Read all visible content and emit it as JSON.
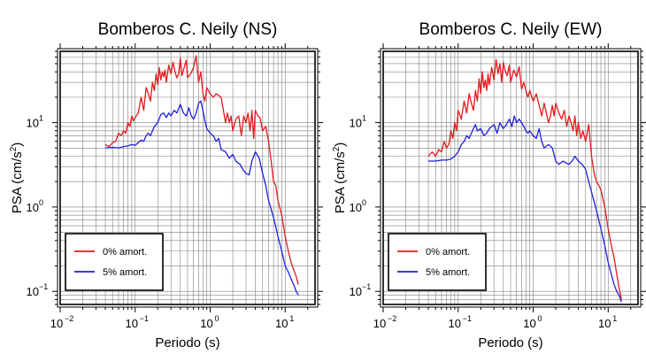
{
  "chart_data": [
    {
      "type": "line",
      "title": "Bomberos C. Neily (NS)",
      "xlabel": "Periodo (s)",
      "ylabel_main": "PSA (cm/s",
      "ylabel_sup": "2",
      "ylabel_close": ")",
      "xscale": "log",
      "yscale": "log",
      "xlim": [
        0.01,
        25
      ],
      "ylim": [
        0.07,
        70
      ],
      "grid": true,
      "legend_position": "bottom-left",
      "xticks": [
        {
          "value": 0.01,
          "base": "10",
          "exp": "−2"
        },
        {
          "value": 0.1,
          "base": "10",
          "exp": "−1"
        },
        {
          "value": 1,
          "base": "10",
          "exp": "0"
        },
        {
          "value": 10,
          "base": "10",
          "exp": "1"
        }
      ],
      "yticks": [
        {
          "value": 0.1,
          "base": "10",
          "exp": "−1"
        },
        {
          "value": 1,
          "base": "10",
          "exp": "0"
        },
        {
          "value": 10,
          "base": "10",
          "exp": "1"
        }
      ],
      "series": [
        {
          "name": "0% amort.",
          "color": "#e41a1c",
          "x": [
            0.04,
            0.045,
            0.05,
            0.055,
            0.06,
            0.065,
            0.07,
            0.075,
            0.08,
            0.085,
            0.09,
            0.095,
            0.1,
            0.11,
            0.12,
            0.13,
            0.14,
            0.15,
            0.16,
            0.17,
            0.18,
            0.19,
            0.2,
            0.21,
            0.22,
            0.23,
            0.24,
            0.25,
            0.26,
            0.28,
            0.3,
            0.32,
            0.34,
            0.36,
            0.38,
            0.4,
            0.42,
            0.45,
            0.48,
            0.5,
            0.55,
            0.6,
            0.65,
            0.7,
            0.75,
            0.8,
            0.85,
            0.9,
            1.0,
            1.1,
            1.2,
            1.3,
            1.4,
            1.5,
            1.6,
            1.7,
            1.8,
            1.9,
            2.0,
            2.2,
            2.4,
            2.6,
            2.8,
            3.0,
            3.2,
            3.4,
            3.6,
            3.8,
            4.0,
            4.3,
            4.6,
            5.0,
            5.5,
            6.0,
            6.5,
            7.0,
            7.5,
            8.0,
            9.0,
            10.0,
            11.0,
            12.0,
            13.0,
            14.0,
            15.0
          ],
          "y": [
            5.5,
            5.2,
            5.8,
            6.0,
            7.5,
            7.0,
            8.0,
            7.5,
            10.0,
            9.0,
            12.0,
            10.5,
            11.5,
            13.0,
            20.0,
            14.0,
            26.0,
            22.0,
            18.0,
            30.0,
            24.0,
            38.0,
            28.0,
            45.0,
            32.0,
            40.0,
            35.0,
            42.0,
            30.0,
            48.0,
            38.0,
            52.0,
            40.0,
            34.0,
            38.0,
            58.0,
            36.0,
            45.0,
            55.0,
            34.0,
            38.0,
            45.0,
            62.0,
            30.0,
            40.0,
            22.0,
            18.0,
            26.0,
            22.0,
            20.0,
            22.0,
            21.0,
            20.0,
            14.0,
            10.0,
            13.0,
            10.0,
            12.0,
            8.0,
            11.0,
            12.0,
            7.0,
            12.0,
            10.0,
            13.0,
            8.0,
            14.0,
            6.5,
            14.0,
            12.0,
            11.5,
            8.0,
            9.0,
            6.0,
            3.5,
            2.0,
            1.8,
            1.2,
            0.8,
            0.45,
            0.3,
            0.22,
            0.18,
            0.15,
            0.12
          ]
        },
        {
          "name": "5% amort.",
          "color": "#1f1fe0",
          "x": [
            0.04,
            0.05,
            0.06,
            0.07,
            0.08,
            0.09,
            0.1,
            0.11,
            0.12,
            0.13,
            0.14,
            0.15,
            0.16,
            0.17,
            0.18,
            0.2,
            0.22,
            0.24,
            0.26,
            0.28,
            0.3,
            0.33,
            0.36,
            0.4,
            0.44,
            0.48,
            0.52,
            0.56,
            0.6,
            0.65,
            0.7,
            0.75,
            0.8,
            0.85,
            0.9,
            1.0,
            1.1,
            1.2,
            1.3,
            1.4,
            1.6,
            1.8,
            2.0,
            2.2,
            2.5,
            2.8,
            3.0,
            3.3,
            3.6,
            4.0,
            4.5,
            5.0,
            5.5,
            6.0,
            7.0,
            8.0,
            9.0,
            10.0,
            11.0,
            12.0,
            13.0,
            14.0,
            15.0
          ],
          "y": [
            5.0,
            5.1,
            5.0,
            5.2,
            5.3,
            5.5,
            5.4,
            5.8,
            6.2,
            6.0,
            7.0,
            7.5,
            7.0,
            8.0,
            9.0,
            10.0,
            12.5,
            13.0,
            11.5,
            13.0,
            12.0,
            14.0,
            13.0,
            16.5,
            13.0,
            12.0,
            15.0,
            12.0,
            11.0,
            13.0,
            17.0,
            18.0,
            14.0,
            10.5,
            8.5,
            7.5,
            7.0,
            6.0,
            6.5,
            4.8,
            4.5,
            3.8,
            4.2,
            3.5,
            3.2,
            2.7,
            2.5,
            2.4,
            3.5,
            4.5,
            3.8,
            2.5,
            1.8,
            1.2,
            0.75,
            0.45,
            0.3,
            0.2,
            0.17,
            0.14,
            0.12,
            0.1,
            0.09
          ]
        }
      ]
    },
    {
      "type": "line",
      "title": "Bomberos C. Neily (EW)",
      "xlabel": "Periodo (s)",
      "ylabel_main": "PSA (cm/s",
      "ylabel_sup": "2",
      "ylabel_close": ")",
      "xscale": "log",
      "yscale": "log",
      "xlim": [
        0.01,
        25
      ],
      "ylim": [
        0.07,
        70
      ],
      "grid": true,
      "legend_position": "bottom-left",
      "xticks": [
        {
          "value": 0.01,
          "base": "10",
          "exp": "−2"
        },
        {
          "value": 0.1,
          "base": "10",
          "exp": "−1"
        },
        {
          "value": 1,
          "base": "10",
          "exp": "0"
        },
        {
          "value": 10,
          "base": "10",
          "exp": "1"
        }
      ],
      "yticks": [
        {
          "value": 0.1,
          "base": "10",
          "exp": "−1"
        },
        {
          "value": 1,
          "base": "10",
          "exp": "0"
        },
        {
          "value": 10,
          "base": "10",
          "exp": "1"
        }
      ],
      "series": [
        {
          "name": "0% amort.",
          "color": "#e41a1c",
          "x": [
            0.04,
            0.045,
            0.05,
            0.055,
            0.06,
            0.065,
            0.07,
            0.075,
            0.08,
            0.085,
            0.09,
            0.095,
            0.1,
            0.11,
            0.12,
            0.13,
            0.14,
            0.15,
            0.16,
            0.17,
            0.18,
            0.19,
            0.2,
            0.21,
            0.22,
            0.23,
            0.24,
            0.25,
            0.26,
            0.28,
            0.3,
            0.32,
            0.34,
            0.36,
            0.38,
            0.4,
            0.42,
            0.45,
            0.48,
            0.5,
            0.55,
            0.6,
            0.65,
            0.7,
            0.75,
            0.8,
            0.85,
            0.9,
            1.0,
            1.1,
            1.2,
            1.3,
            1.4,
            1.5,
            1.6,
            1.7,
            1.8,
            1.9,
            2.0,
            2.2,
            2.4,
            2.6,
            2.8,
            3.0,
            3.2,
            3.4,
            3.6,
            3.8,
            4.0,
            4.3,
            4.6,
            5.0,
            5.5,
            6.0,
            6.5,
            7.0,
            7.5,
            8.0,
            9.0,
            10.0,
            11.0,
            12.0,
            13.0,
            14.0,
            15.0
          ],
          "y": [
            4.0,
            4.5,
            4.0,
            4.8,
            4.5,
            6.0,
            5.0,
            5.5,
            8.0,
            6.5,
            10.0,
            8.0,
            14.0,
            11.0,
            18.0,
            13.0,
            22.0,
            17.0,
            14.0,
            24.0,
            18.0,
            33.0,
            22.0,
            40.0,
            26.0,
            32.0,
            24.0,
            38.0,
            28.0,
            45.0,
            32.0,
            56.0,
            38.0,
            50.0,
            30.0,
            52.0,
            42.0,
            36.0,
            48.0,
            30.0,
            42.0,
            35.0,
            46.0,
            25.0,
            30.0,
            24.0,
            20.0,
            24.0,
            18.0,
            22.0,
            16.0,
            12.0,
            17.0,
            13.0,
            10.0,
            12.0,
            16.0,
            12.0,
            17.0,
            13.0,
            11.0,
            14.0,
            9.0,
            12.0,
            10.0,
            8.0,
            12.0,
            7.0,
            10.0,
            6.5,
            8.0,
            6.0,
            9.5,
            4.0,
            2.5,
            2.0,
            1.8,
            1.6,
            1.0,
            0.55,
            0.35,
            0.25,
            0.16,
            0.11,
            0.08
          ]
        },
        {
          "name": "5% amort.",
          "color": "#1f1fe0",
          "x": [
            0.04,
            0.05,
            0.06,
            0.07,
            0.08,
            0.09,
            0.1,
            0.11,
            0.12,
            0.13,
            0.14,
            0.15,
            0.16,
            0.17,
            0.18,
            0.2,
            0.22,
            0.24,
            0.26,
            0.28,
            0.3,
            0.33,
            0.36,
            0.4,
            0.44,
            0.48,
            0.52,
            0.56,
            0.6,
            0.65,
            0.7,
            0.75,
            0.8,
            0.85,
            0.9,
            1.0,
            1.1,
            1.2,
            1.3,
            1.4,
            1.6,
            1.8,
            2.0,
            2.2,
            2.5,
            2.8,
            3.0,
            3.3,
            3.6,
            4.0,
            4.5,
            5.0,
            5.5,
            6.0,
            7.0,
            8.0,
            9.0,
            10.0,
            11.0,
            12.0,
            13.0,
            14.0,
            15.0
          ],
          "y": [
            3.5,
            3.5,
            3.6,
            3.6,
            3.7,
            4.0,
            4.5,
            5.5,
            6.0,
            7.0,
            6.5,
            7.5,
            8.5,
            9.5,
            8.0,
            8.5,
            7.0,
            7.5,
            8.5,
            9.0,
            9.5,
            7.5,
            10.0,
            8.5,
            9.5,
            11.0,
            9.0,
            12.0,
            10.0,
            11.0,
            10.0,
            9.0,
            8.0,
            7.5,
            8.0,
            7.0,
            6.5,
            8.5,
            6.0,
            5.0,
            5.5,
            5.0,
            3.5,
            3.2,
            3.5,
            3.3,
            3.2,
            3.5,
            4.0,
            3.5,
            3.2,
            2.8,
            2.0,
            1.5,
            0.9,
            0.55,
            0.35,
            0.22,
            0.16,
            0.12,
            0.1,
            0.09,
            0.075
          ]
        }
      ]
    }
  ]
}
